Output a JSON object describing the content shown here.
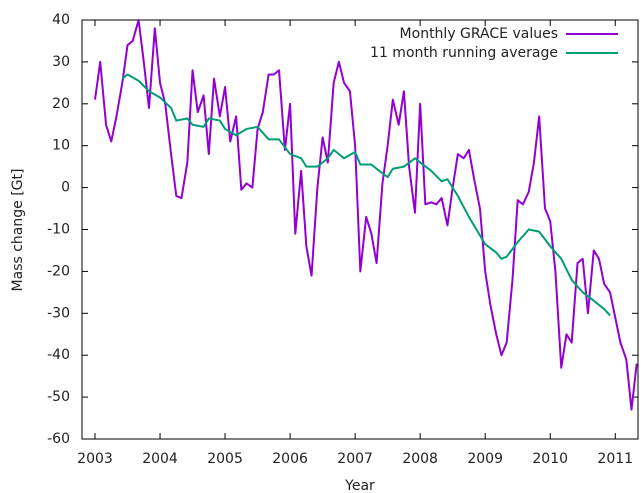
{
  "chart_data": {
    "type": "line",
    "x_label": "Year",
    "y_label": "Mass change [Gt]",
    "xlim": [
      2002.8,
      2011.35
    ],
    "ylim": [
      -60,
      40
    ],
    "xticks": [
      2003,
      2004,
      2005,
      2006,
      2007,
      2008,
      2009,
      2010,
      2011
    ],
    "yticks": [
      -60,
      -50,
      -40,
      -30,
      -20,
      -10,
      0,
      10,
      20,
      30,
      40
    ],
    "grid": false,
    "legend": "top-right",
    "series": [
      {
        "name": "Monthly GRACE values",
        "color": "#9400d3",
        "x": [
          2003.0,
          2003.08,
          2003.17,
          2003.25,
          2003.33,
          2003.42,
          2003.5,
          2003.58,
          2003.67,
          2003.75,
          2003.83,
          2003.92,
          2004.0,
          2004.08,
          2004.17,
          2004.25,
          2004.33,
          2004.42,
          2004.5,
          2004.58,
          2004.67,
          2004.75,
          2004.83,
          2004.92,
          2005.0,
          2005.08,
          2005.17,
          2005.25,
          2005.33,
          2005.42,
          2005.5,
          2005.58,
          2005.67,
          2005.75,
          2005.83,
          2005.92,
          2006.0,
          2006.08,
          2006.17,
          2006.25,
          2006.33,
          2006.42,
          2006.5,
          2006.58,
          2006.67,
          2006.75,
          2006.83,
          2006.92,
          2007.0,
          2007.08,
          2007.17,
          2007.25,
          2007.33,
          2007.42,
          2007.5,
          2007.58,
          2007.67,
          2007.75,
          2007.83,
          2007.92,
          2008.0,
          2008.08,
          2008.17,
          2008.25,
          2008.33,
          2008.42,
          2008.5,
          2008.58,
          2008.67,
          2008.75,
          2008.83,
          2008.92,
          2009.0,
          2009.08,
          2009.17,
          2009.25,
          2009.33,
          2009.42,
          2009.5,
          2009.58,
          2009.67,
          2009.75,
          2009.83,
          2009.92,
          2010.0,
          2010.08,
          2010.17,
          2010.25,
          2010.33,
          2010.42,
          2010.5,
          2010.58,
          2010.67,
          2010.75,
          2010.83,
          2010.92,
          2011.0,
          2011.08,
          2011.17,
          2011.25,
          2011.33
        ],
        "values": [
          21,
          30,
          15,
          11,
          17,
          25,
          34,
          35,
          40,
          30,
          19,
          38,
          25,
          20,
          8,
          -2,
          -2.5,
          6,
          28,
          18,
          22,
          8,
          26,
          17,
          24,
          11,
          17,
          -0.5,
          1,
          0,
          14,
          18,
          27,
          27,
          28,
          9,
          20,
          -11,
          4,
          -14,
          -21,
          0,
          12,
          6,
          25,
          30,
          25,
          23,
          10,
          -20,
          -7,
          -11,
          -18,
          1,
          10,
          21,
          15,
          23,
          5,
          -6,
          20,
          -4,
          -3.5,
          -4,
          -2.5,
          -9,
          0,
          8,
          7,
          9,
          2,
          -5,
          -20,
          -28,
          -35,
          -40,
          -37,
          -22,
          -3,
          -4,
          -1,
          6,
          17,
          -5,
          -8,
          -20,
          -43,
          -35,
          -37,
          -18,
          -17,
          -30,
          -15,
          -17,
          -23,
          -25,
          -31,
          -37,
          -41,
          -53,
          -42
        ]
      },
      {
        "name": "11 month running average",
        "color": "#009e73",
        "x": [
          2003.42,
          2003.5,
          2003.67,
          2003.83,
          2004.0,
          2004.17,
          2004.25,
          2004.42,
          2004.5,
          2004.67,
          2004.75,
          2004.92,
          2005.0,
          2005.17,
          2005.33,
          2005.5,
          2005.67,
          2005.83,
          2006.0,
          2006.17,
          2006.25,
          2006.42,
          2006.58,
          2006.67,
          2006.83,
          2007.0,
          2007.08,
          2007.25,
          2007.33,
          2007.5,
          2007.58,
          2007.75,
          2007.92,
          2008.0,
          2008.17,
          2008.33,
          2008.42,
          2008.58,
          2008.75,
          2009.0,
          2009.17,
          2009.25,
          2009.33,
          2009.5,
          2009.67,
          2009.83,
          2010.0,
          2010.17,
          2010.33,
          2010.5,
          2010.67,
          2010.83,
          2010.92
        ],
        "values": [
          26,
          27,
          25.5,
          23,
          21.5,
          19,
          16,
          16.5,
          15,
          14.5,
          16.5,
          16,
          14,
          12.5,
          14,
          14.5,
          11.5,
          11.5,
          8,
          7,
          5,
          5,
          7,
          9,
          7,
          8.5,
          5.5,
          5.5,
          4.5,
          2.5,
          4.5,
          5,
          7,
          6,
          4,
          1.5,
          2,
          -2,
          -7,
          -13.5,
          -15.5,
          -17,
          -16.5,
          -13,
          -10,
          -10.5,
          -14,
          -17,
          -22,
          -25,
          -27,
          -29,
          -30.5
        ]
      }
    ]
  }
}
